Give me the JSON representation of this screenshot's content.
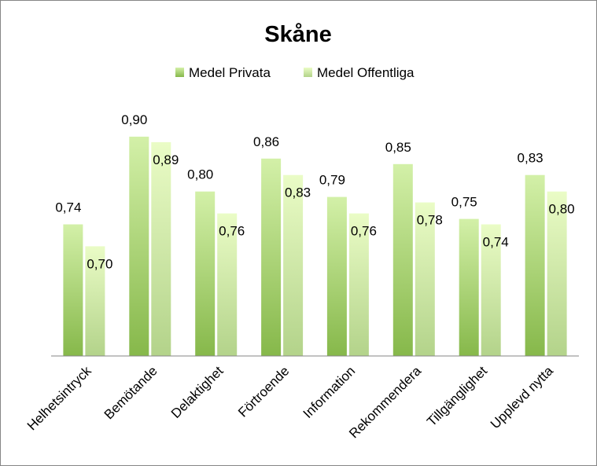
{
  "chart_data": {
    "type": "bar",
    "title": "Skåne",
    "categories": [
      "Helhetsintryck",
      "Bemötande",
      "Delaktighet",
      "Förtroende",
      "Information",
      "Rekommendera",
      "Tillgänglighet",
      "Upplevd nytta"
    ],
    "series": [
      {
        "name": "Medel Privata",
        "values": [
          0.74,
          0.9,
          0.8,
          0.86,
          0.79,
          0.85,
          0.75,
          0.83
        ],
        "labels": [
          "0,74",
          "0,90",
          "0,80",
          "0,86",
          "0,79",
          "0,85",
          "0,75",
          "0,83"
        ],
        "color_top": "#d3f0a8",
        "color_bottom": "#86b84a"
      },
      {
        "name": "Medel Offentliga",
        "values": [
          0.7,
          0.89,
          0.76,
          0.83,
          0.76,
          0.78,
          0.74,
          0.8
        ],
        "labels": [
          "0,70",
          "0,89",
          "0,76",
          "0,83",
          "0,76",
          "0,78",
          "0,74",
          "0,80"
        ],
        "color_top": "#eafcc6",
        "color_bottom": "#b3d38a"
      }
    ],
    "xlabel": "",
    "ylabel": "",
    "ylim": [
      0.5,
      0.95
    ],
    "grid": false,
    "legend_position": "top",
    "value_labels": true
  }
}
